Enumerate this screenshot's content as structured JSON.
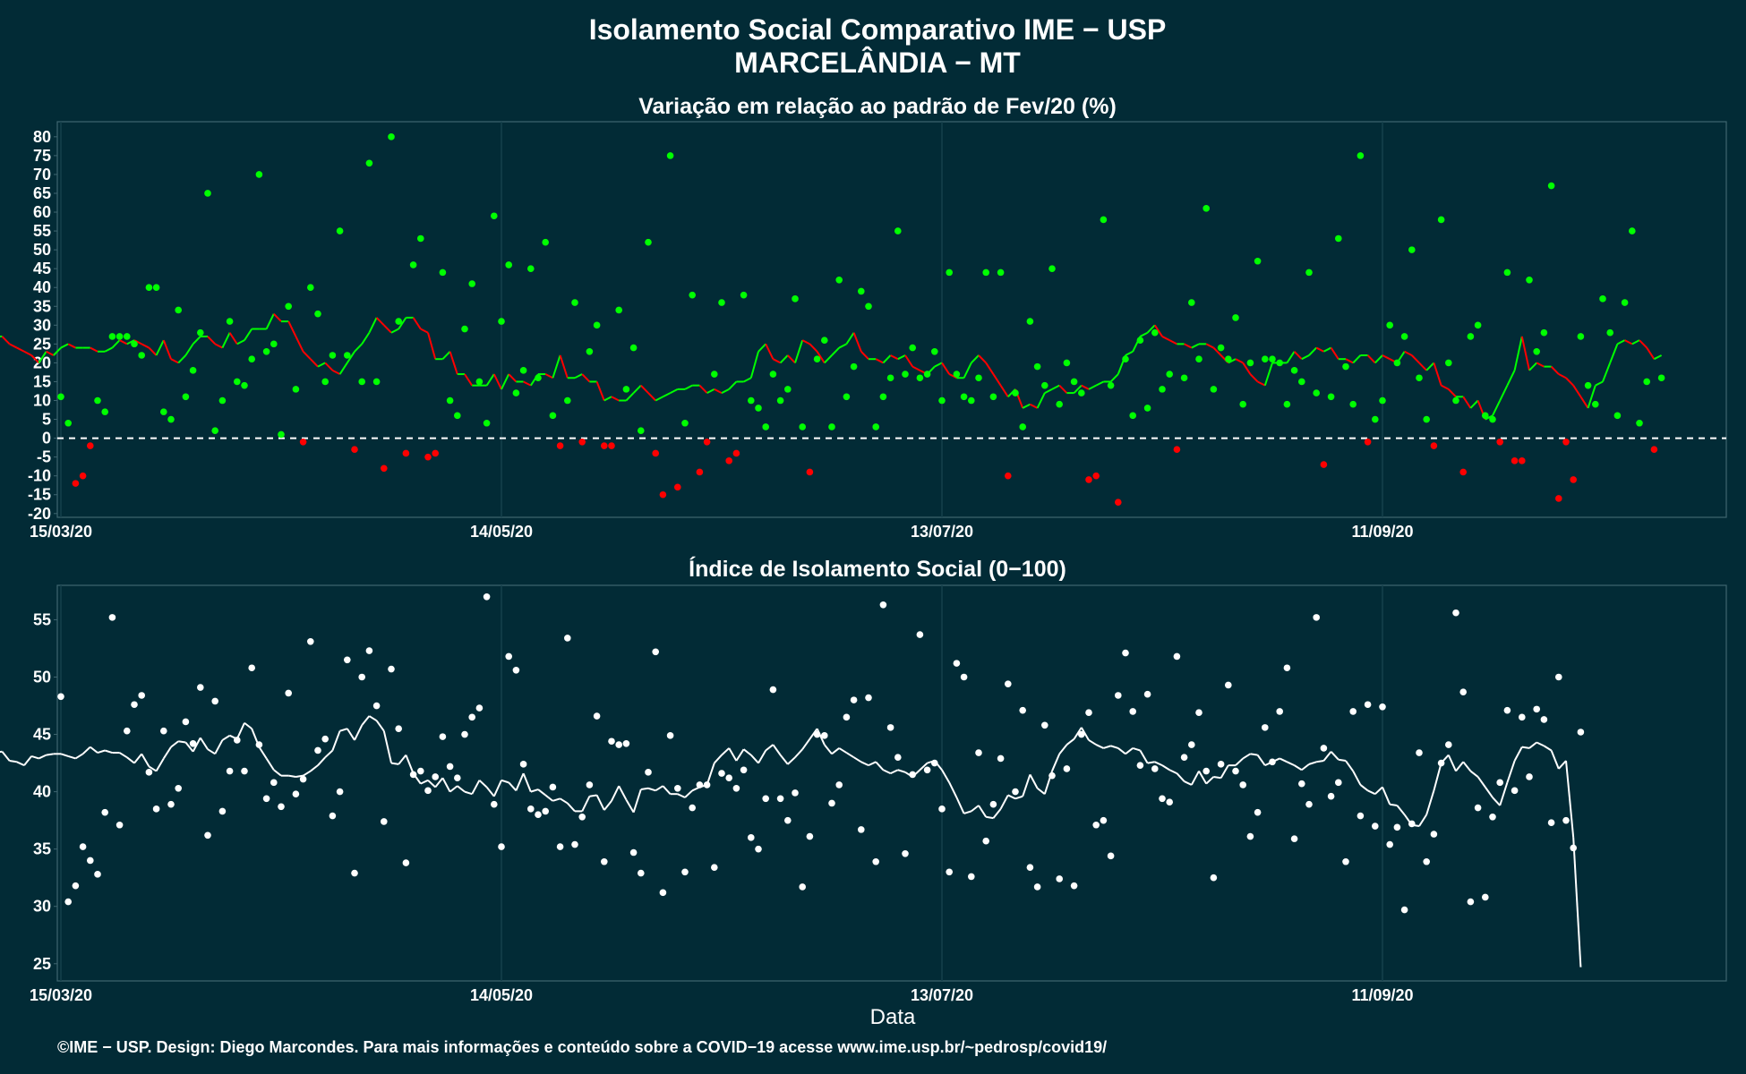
{
  "title_line1": "Isolamento Social Comparativo IME − USP",
  "title_line2": "MARCELÂNDIA − MT",
  "footer": "©IME − USP. Design: Diego Marcondes. Para mais informações e conteúdo sobre a COVID−19 acesse www.ime.usp.br/~pedrosp/covid19/",
  "xlabel": "Data",
  "colors": {
    "background": "#022b36",
    "positive": "#00ff00",
    "negative": "#ff0000",
    "index": "#ffffff",
    "grid": "#15414c"
  },
  "chart_data": [
    {
      "type": "scatter",
      "title": "Variação em relação ao padrão de Fev/20 (%)",
      "xlabel": "Data",
      "ylabel": "",
      "x_start": "2020-03-15",
      "x_ticks": [
        "15/03/20",
        "14/05/20",
        "13/07/20",
        "11/09/20"
      ],
      "ylim": [
        -21,
        84
      ],
      "yticks": [
        80,
        75,
        70,
        65,
        60,
        55,
        50,
        45,
        40,
        35,
        30,
        25,
        20,
        15,
        10,
        5,
        0,
        -5,
        -10,
        -15,
        -20
      ],
      "reference_line": 0,
      "color_rule": "green if value >= 0, red if value < 0",
      "values": [
        11,
        4,
        -12,
        -10,
        -2,
        10,
        7,
        27,
        27,
        27,
        25,
        22,
        40,
        40,
        7,
        5,
        34,
        11,
        18,
        28,
        65,
        2,
        10,
        31,
        15,
        14,
        21,
        70,
        23,
        25,
        1,
        35,
        13,
        -1,
        40,
        33,
        15,
        22,
        55,
        22,
        -3,
        15,
        73,
        15,
        -8,
        80,
        31,
        -4,
        46,
        53,
        -5,
        -4,
        44,
        10,
        6,
        29,
        41,
        15,
        4,
        59,
        31,
        46,
        12,
        18,
        45,
        16,
        52,
        6,
        -2,
        10,
        36,
        -1,
        23,
        30,
        -2,
        -2,
        34,
        13,
        24,
        2,
        52,
        -4,
        -15,
        75,
        -13,
        4,
        38,
        -9,
        -1,
        17,
        36,
        -6,
        -4,
        38,
        10,
        8,
        3,
        17,
        10,
        13,
        37,
        3,
        -9,
        21,
        26,
        3,
        42,
        11,
        19,
        39,
        35,
        3,
        11,
        16,
        55,
        17,
        24,
        16,
        17,
        23,
        10,
        44,
        17,
        11,
        10,
        16,
        44,
        11,
        44,
        -10,
        12,
        3,
        31,
        19,
        14,
        45,
        9,
        20,
        15,
        12,
        -11,
        -10,
        58,
        14,
        -17,
        21,
        6,
        26,
        8,
        28,
        13,
        17,
        -3,
        16,
        36,
        21,
        61,
        13,
        24,
        21,
        32,
        9,
        20,
        47,
        21,
        21,
        20,
        9,
        18,
        15,
        44,
        12,
        -7,
        11,
        53,
        19,
        9,
        75,
        -1,
        5,
        10,
        30,
        20,
        27,
        50,
        16,
        5,
        -2,
        58,
        20,
        10,
        -9,
        27,
        30,
        6,
        5,
        -1,
        44,
        -6,
        -6,
        42,
        23,
        28,
        67,
        -16,
        -1,
        -11,
        27,
        14,
        9,
        37,
        28,
        6,
        36,
        55,
        4,
        15,
        -3,
        16
      ],
      "moving_average": [
        16,
        12,
        9,
        5,
        1,
        3,
        6,
        9,
        13,
        17,
        22,
        27,
        27,
        25,
        24,
        23,
        22,
        20,
        23,
        22,
        24,
        25,
        24,
        24,
        24,
        23,
        23,
        24,
        26,
        25,
        26,
        25,
        24,
        22,
        26,
        21,
        20,
        22,
        25,
        27,
        27,
        25,
        24,
        28,
        25,
        26,
        29,
        29,
        29,
        33,
        31,
        31,
        27,
        23,
        21,
        19,
        20,
        18,
        17,
        20,
        23,
        25,
        28,
        32,
        30,
        28,
        29,
        32,
        32,
        29,
        28,
        21,
        21,
        23,
        17,
        17,
        14,
        14,
        14,
        17,
        13,
        17,
        15,
        15,
        14,
        17,
        17,
        16,
        22,
        16,
        16,
        17,
        15,
        15,
        10,
        11,
        10,
        10,
        12,
        14,
        12,
        10,
        11,
        12,
        13,
        13,
        14,
        14,
        12,
        13,
        12,
        13,
        15,
        15,
        16,
        23,
        25,
        21,
        20,
        22,
        20,
        26,
        25,
        23,
        20,
        22,
        24,
        25,
        28,
        23,
        21,
        21,
        20,
        22,
        21,
        22,
        19,
        18,
        17,
        19,
        20,
        17,
        16,
        16,
        20,
        22,
        20,
        17,
        14,
        11,
        13,
        8,
        9,
        8,
        12,
        13,
        14,
        12,
        12,
        14,
        13,
        14,
        15,
        15,
        17,
        22,
        23,
        27,
        28,
        30,
        27,
        26,
        25,
        25,
        24,
        25,
        25,
        24,
        22,
        20,
        21,
        20,
        17,
        15,
        14,
        20,
        20,
        20,
        23,
        21,
        22,
        24,
        23,
        24,
        21,
        21,
        20,
        22,
        22,
        20,
        22,
        21,
        20,
        23,
        22,
        20,
        18,
        20,
        14,
        13,
        11,
        11,
        8,
        10,
        5,
        6,
        10,
        14,
        18,
        27,
        18,
        20,
        19,
        19,
        17,
        16,
        14,
        11,
        8,
        14,
        15,
        20,
        25,
        26,
        25,
        26,
        24,
        21,
        22
      ]
    },
    {
      "type": "scatter",
      "title": "Índice de Isolamento Social (0−100)",
      "xlabel": "Data",
      "ylabel": "",
      "x_start": "2020-03-15",
      "x_ticks": [
        "15/03/20",
        "14/05/20",
        "13/07/20",
        "11/09/20"
      ],
      "ylim": [
        23.5,
        58
      ],
      "yticks": [
        55,
        50,
        45,
        40,
        35,
        30,
        25
      ],
      "values": [
        48.3,
        30.4,
        31.8,
        35.2,
        34.0,
        32.8,
        38.2,
        55.2,
        37.1,
        45.3,
        47.6,
        48.4,
        41.7,
        38.5,
        45.3,
        38.9,
        40.3,
        46.1,
        44.2,
        49.1,
        36.2,
        47.9,
        38.3,
        41.8,
        44.5,
        41.8,
        50.8,
        44.1,
        39.4,
        40.8,
        38.7,
        48.6,
        39.8,
        41.1,
        53.1,
        43.6,
        44.6,
        37.9,
        40.0,
        51.5,
        32.9,
        50.0,
        52.3,
        47.5,
        37.4,
        50.7,
        45.5,
        33.8,
        41.5,
        41.8,
        40.1,
        41.3,
        44.8,
        42.2,
        41.2,
        45.0,
        46.5,
        47.3,
        57.0,
        38.9,
        35.2,
        51.8,
        50.6,
        42.4,
        38.5,
        38.0,
        38.3,
        40.4,
        35.2,
        53.4,
        35.4,
        37.8,
        40.6,
        46.6,
        33.9,
        44.4,
        44.1,
        44.2,
        34.7,
        32.9,
        41.7,
        52.2,
        31.2,
        44.9,
        40.3,
        33.0,
        38.6,
        40.6,
        40.6,
        33.4,
        41.6,
        41.2,
        40.3,
        41.9,
        36.0,
        35.0,
        39.4,
        48.9,
        39.4,
        37.5,
        39.9,
        31.7,
        36.1,
        45.0,
        44.9,
        39.0,
        40.6,
        46.5,
        48.0,
        36.7,
        48.2,
        33.9,
        56.3,
        45.6,
        43.0,
        34.6,
        41.5,
        53.7,
        41.9,
        42.5,
        38.5,
        33.0,
        51.2,
        50.0,
        32.6,
        43.4,
        35.7,
        38.9,
        42.9,
        49.4,
        40.0,
        47.1,
        33.4,
        31.7,
        45.8,
        41.4,
        32.4,
        42.0,
        31.8,
        45.0,
        46.9,
        37.1,
        37.5,
        34.4,
        48.4,
        52.1,
        47.0,
        42.3,
        48.5,
        42.0,
        39.4,
        39.1,
        51.8,
        43.0,
        44.1,
        46.9,
        41.8,
        32.5,
        42.4,
        49.3,
        41.8,
        40.6,
        36.1,
        38.2,
        45.6,
        42.6,
        47.0,
        50.8,
        35.9,
        40.7,
        38.9,
        55.2,
        43.8,
        39.6,
        40.8,
        33.9,
        47.0,
        37.9,
        47.6,
        37.0,
        47.4,
        35.4,
        36.9,
        29.7,
        37.2,
        43.4,
        33.9,
        36.3,
        42.5,
        44.1,
        55.6,
        48.7,
        30.4,
        38.6,
        30.8,
        37.8,
        40.8,
        47.1,
        40.1,
        46.5,
        41.3,
        47.2,
        46.3,
        37.3,
        50.0,
        37.5,
        35.1,
        45.2
      ],
      "moving_average": [
        35.7,
        36.7,
        37.8,
        38.8,
        40.7,
        43.2,
        44.9,
        44.1,
        43.4,
        43.5,
        42.7,
        42.6,
        42.3,
        43.1,
        42.9,
        43.2,
        43.3,
        43.3,
        43.1,
        42.9,
        43.3,
        43.9,
        43.4,
        43.6,
        43.4,
        43.4,
        43.0,
        42.5,
        43.3,
        42.2,
        41.8,
        42.9,
        43.9,
        44.4,
        44.3,
        43.5,
        44.7,
        43.7,
        43.3,
        44.5,
        44.9,
        44.6,
        46.0,
        45.5,
        43.9,
        42.9,
        41.9,
        41.4,
        41.4,
        41.3,
        41.4,
        41.8,
        42.3,
        43.0,
        43.6,
        45.3,
        45.5,
        44.5,
        45.8,
        46.6,
        46.2,
        45.3,
        42.5,
        42.4,
        43.2,
        41.6,
        40.7,
        41.0,
        40.4,
        41.2,
        40.0,
        40.5,
        40.0,
        39.8,
        41.0,
        40.4,
        39.6,
        41.0,
        40.8,
        40.1,
        41.6,
        40.0,
        40.2,
        39.7,
        39.2,
        39.4,
        39.0,
        38.3,
        38.3,
        39.6,
        39.7,
        38.4,
        39.2,
        40.5,
        39.3,
        38.2,
        40.2,
        40.3,
        40.1,
        40.5,
        39.8,
        39.8,
        39.5,
        40.1,
        40.4,
        40.6,
        42.5,
        43.2,
        43.8,
        42.7,
        43.7,
        43.2,
        42.5,
        43.6,
        44.1,
        43.2,
        42.4,
        43.0,
        43.7,
        44.6,
        45.5,
        44.1,
        43.3,
        43.8,
        43.4,
        43.0,
        42.6,
        42.3,
        42.6,
        41.9,
        41.6,
        41.9,
        41.7,
        41.3,
        41.9,
        42.5,
        42.7,
        41.9,
        40.8,
        39.5,
        38.1,
        38.3,
        38.8,
        37.8,
        37.7,
        38.5,
        39.7,
        39.4,
        39.6,
        41.5,
        40.3,
        39.8,
        41.8,
        43.3,
        44.1,
        44.6,
        45.6,
        44.5,
        44.1,
        43.8,
        44.0,
        43.8,
        43.3,
        43.8,
        43.6,
        42.5,
        42.6,
        42.3,
        41.9,
        41.6,
        40.9,
        40.6,
        41.8,
        40.7,
        41.3,
        41.2,
        42.3,
        42.3,
        42.9,
        43.3,
        43.2,
        42.3,
        42.6,
        42.9,
        42.6,
        42.3,
        41.9,
        42.4,
        42.6,
        42.7,
        43.5,
        42.8,
        42.7,
        41.8,
        40.6,
        40.1,
        39.8,
        40.4,
        38.9,
        38.8,
        38.0,
        37.1,
        37.0,
        38.0,
        40.1,
        42.5,
        43.2,
        41.8,
        42.6,
        41.8,
        41.3,
        40.4,
        39.5,
        38.8,
        40.8,
        42.7,
        43.9,
        43.8,
        44.3,
        44.0,
        43.6,
        42.0,
        42.7,
        36.0,
        24.7
      ]
    }
  ]
}
